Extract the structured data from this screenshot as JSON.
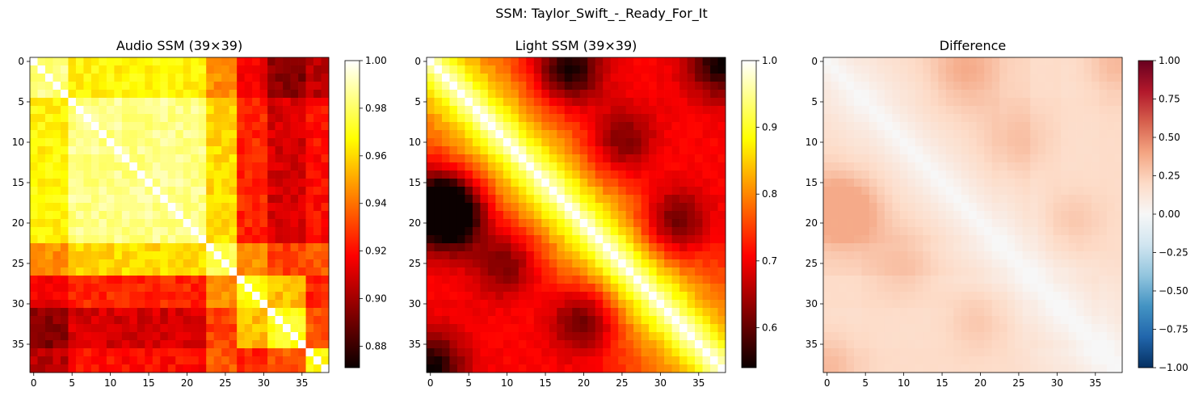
{
  "figure": {
    "title": "SSM: Taylor_Swift_-_Ready_For_It"
  },
  "chart_data": [
    {
      "type": "heatmap",
      "title": "Audio SSM (39×39)",
      "size": 39,
      "colormap": "hot",
      "xlim": [
        -0.5,
        38.5
      ],
      "ylim": [
        38.5,
        -0.5
      ],
      "xticks": [
        0,
        5,
        10,
        15,
        20,
        25,
        30,
        35
      ],
      "yticks": [
        0,
        5,
        10,
        15,
        20,
        25,
        30,
        35
      ],
      "colorbar": {
        "range": [
          0.871,
          1.0
        ],
        "ticks": [
          0.88,
          0.9,
          0.92,
          0.94,
          0.96,
          0.98,
          1.0
        ],
        "tick_labels": [
          "0.88",
          "0.90",
          "0.92",
          "0.94",
          "0.96",
          "0.98",
          "1.00"
        ]
      },
      "block_structure": {
        "segments": [
          [
            0,
            4
          ],
          [
            5,
            22
          ],
          [
            23,
            26
          ],
          [
            27,
            30
          ],
          [
            31,
            35
          ],
          [
            36,
            38
          ]
        ],
        "matrix": [
          [
            0.985,
            0.966,
            0.945,
            0.915,
            0.895,
            0.905
          ],
          [
            0.966,
            0.985,
            0.96,
            0.925,
            0.91,
            0.92
          ],
          [
            0.945,
            0.96,
            0.975,
            0.945,
            0.93,
            0.935
          ],
          [
            0.915,
            0.925,
            0.945,
            0.97,
            0.955,
            0.925
          ],
          [
            0.895,
            0.91,
            0.93,
            0.955,
            0.97,
            0.935
          ],
          [
            0.905,
            0.92,
            0.935,
            0.925,
            0.935,
            0.965
          ]
        ]
      },
      "diagonal": 1.0
    },
    {
      "type": "heatmap",
      "title": "Light SSM (39×39)",
      "size": 39,
      "colormap": "hot",
      "xlim": [
        -0.5,
        38.5
      ],
      "ylim": [
        38.5,
        -0.5
      ],
      "xticks": [
        0,
        5,
        10,
        15,
        20,
        25,
        30,
        35
      ],
      "yticks": [
        0,
        5,
        10,
        15,
        20,
        25,
        30,
        35
      ],
      "colorbar": {
        "range": [
          0.54,
          1.0
        ],
        "ticks": [
          0.6,
          0.7,
          0.8,
          0.9,
          1.0
        ],
        "tick_labels": [
          "0.6",
          "0.7",
          "0.8",
          "0.9",
          "1.0"
        ]
      },
      "band_structure": {
        "diagonal": 1.0,
        "near_diagonal_decay": 7,
        "off_diagonal_base": 0.7,
        "dark_spots": [
          [
            18,
            1,
            0.56
          ],
          [
            19,
            3,
            0.58
          ],
          [
            1,
            18,
            0.58
          ],
          [
            32,
            20,
            0.62
          ],
          [
            20,
            32,
            0.62
          ],
          [
            0,
            38,
            0.6
          ],
          [
            38,
            0,
            0.6
          ],
          [
            10,
            25,
            0.65
          ],
          [
            25,
            10,
            0.65
          ]
        ]
      }
    },
    {
      "type": "heatmap",
      "title": "Difference",
      "size": 39,
      "colormap": "RdBu_r",
      "xlim": [
        -0.5,
        38.5
      ],
      "ylim": [
        38.5,
        -0.5
      ],
      "xticks": [
        0,
        5,
        10,
        15,
        20,
        25,
        30,
        35
      ],
      "yticks": [
        0,
        5,
        10,
        15,
        20,
        25,
        30,
        35
      ],
      "colorbar": {
        "range": [
          -1.0,
          1.0
        ],
        "ticks": [
          -1.0,
          -0.75,
          -0.5,
          -0.25,
          0.0,
          0.25,
          0.5,
          0.75,
          1.0
        ],
        "tick_labels": [
          "−1.00",
          "−0.75",
          "−0.50",
          "−0.25",
          "0.00",
          "0.25",
          "0.50",
          "0.75",
          "1.00"
        ]
      },
      "definition": "audio minus light",
      "value_range_shown": [
        0.0,
        0.38
      ]
    }
  ]
}
